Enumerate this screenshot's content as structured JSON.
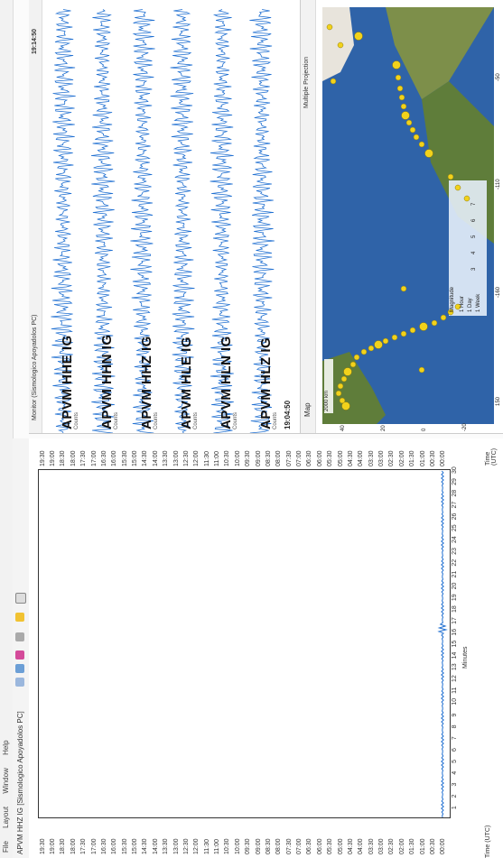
{
  "menu": [
    "File",
    "Layout",
    "Window",
    "Help"
  ],
  "toolbar": {
    "stream": "APVM HHZ IG [Sismologico Apoyadolos PC]"
  },
  "helicorder": {
    "time_left": [
      "19:30",
      "19:00",
      "18:30",
      "18:00",
      "17:30",
      "17:00",
      "16:30",
      "16:00",
      "15:30",
      "15:00",
      "14:30",
      "14:00",
      "13:30",
      "13:00",
      "12:30",
      "12:00",
      "11:30",
      "11:00",
      "10:30",
      "10:00",
      "09:30",
      "09:00",
      "08:30",
      "08:00",
      "07:30",
      "07:00",
      "06:30",
      "06:00",
      "05:30",
      "05:00",
      "04:30",
      "04:00",
      "03:30",
      "03:00",
      "02:30",
      "02:00",
      "01:30",
      "01:00",
      "00:30",
      "00:00"
    ],
    "time_right": [
      "19:30",
      "19:00",
      "18:30",
      "18:00",
      "17:30",
      "17:00",
      "16:30",
      "16:00",
      "15:30",
      "15:00",
      "14:30",
      "14:00",
      "13:30",
      "13:00",
      "12:30",
      "12:00",
      "11:30",
      "11:00",
      "10:30",
      "10:00",
      "09:30",
      "09:00",
      "08:30",
      "08:00",
      "07:30",
      "07:00",
      "06:30",
      "06:00",
      "05:30",
      "05:00",
      "04:30",
      "04:00",
      "03:30",
      "03:00",
      "02:30",
      "02:00",
      "01:30",
      "01:00",
      "00:30",
      "00:00"
    ],
    "minute_ticks": [
      "1",
      "2",
      "3",
      "4",
      "5",
      "6",
      "7",
      "8",
      "9",
      "10",
      "11",
      "12",
      "13",
      "14",
      "15",
      "16",
      "17",
      "18",
      "19",
      "20",
      "21",
      "22",
      "23",
      "24",
      "25",
      "26",
      "27",
      "28",
      "29",
      "30"
    ],
    "x_title": "Minutes",
    "tz_left": "Time (UTC)",
    "tz_right": "Time (UTC)"
  },
  "traces": {
    "header": "Monitor (Sismologico Apoyadolos PC)",
    "clock": "19:14:50",
    "foot_time": "19:04:50",
    "rows": [
      {
        "label": "APVM HHE IG",
        "sub": "Counts"
      },
      {
        "label": "APVM HHN IG",
        "sub": "Counts"
      },
      {
        "label": "APVM HHZ IG",
        "sub": "Counts"
      },
      {
        "label": "APVM HLE IG",
        "sub": "Counts"
      },
      {
        "label": "APVM HLN IG",
        "sub": "Counts"
      },
      {
        "label": "APVM HLZ IG",
        "sub": "Counts"
      }
    ]
  },
  "map": {
    "title": "Map",
    "caption": "Multiple Projection",
    "scale": "2000 km",
    "lat_labels": [
      "40",
      "20",
      "0",
      "-20"
    ],
    "lon_labels": [
      "150",
      "-160",
      "-110",
      "-50"
    ],
    "legend_title": "Magnitude",
    "legend_time": [
      "1 Hour",
      "1 Day",
      "1 Week"
    ],
    "legend_mags": [
      "3",
      "4",
      "5",
      "6",
      "7"
    ],
    "colors": {
      "ocean": "#2f63a8",
      "land": "#5f7d3a",
      "event": "#f2d21b",
      "trace": "#1f6fd1"
    }
  }
}
